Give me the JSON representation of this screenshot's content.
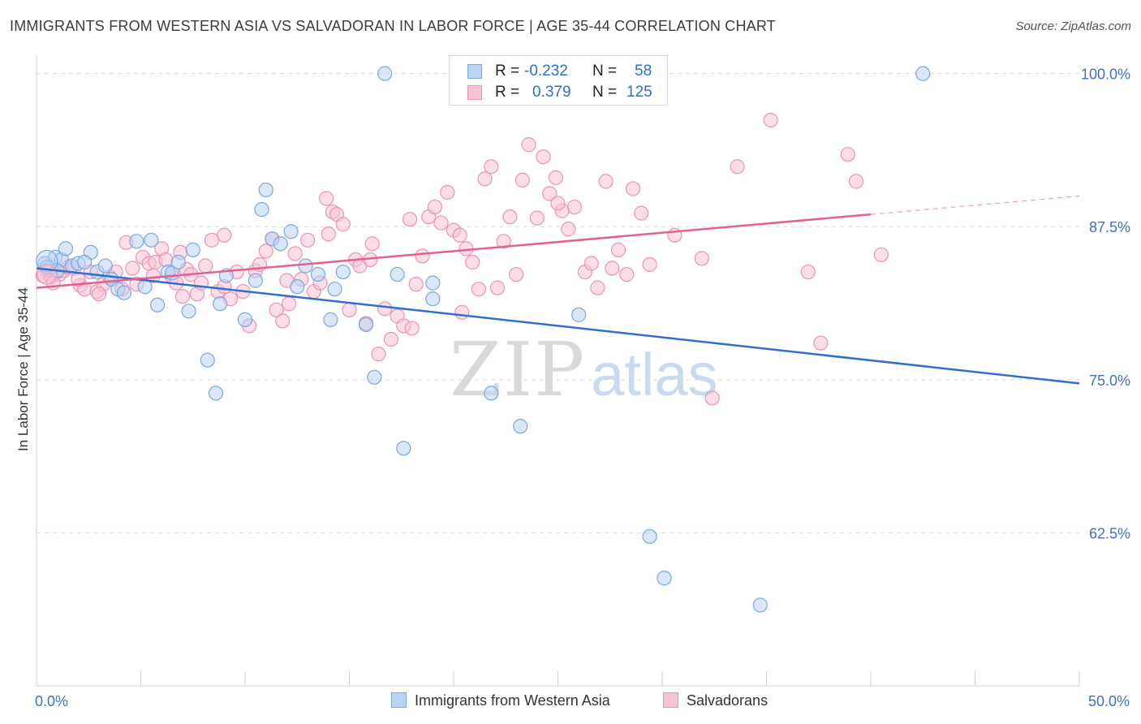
{
  "title": "IMMIGRANTS FROM WESTERN ASIA VS SALVADORAN IN LABOR FORCE | AGE 35-44 CORRELATION CHART",
  "source": "Source: ZipAtlas.com",
  "watermark": {
    "zip": "ZIP",
    "atlas": "atlas"
  },
  "legend_top": [
    {
      "r_label": "R =",
      "r_value": "-0.232",
      "n_label": "N =",
      "n_value": "58"
    },
    {
      "r_label": "R =",
      "r_value": "0.379",
      "n_label": "N =",
      "n_value": "125"
    }
  ],
  "colors": {
    "blue_fill": "#b9d3f3",
    "blue_stroke": "#7aa8e0",
    "blue_line": "#2e6fd0",
    "pink_fill": "#f7c3d5",
    "pink_stroke": "#eb93b3",
    "pink_line": "#e4608f",
    "tick_label": "#3d72c9",
    "grid": "#d9d9d9"
  },
  "chart_data": {
    "type": "scatter",
    "title": "IMMIGRANTS FROM WESTERN ASIA VS SALVADORAN IN LABOR FORCE | AGE 35-44 CORRELATION CHART",
    "xlabel": "",
    "ylabel": "In Labor Force | Age 35-44",
    "xlim": [
      0,
      50
    ],
    "ylim": [
      50,
      101.5
    ],
    "x_tick_labels": [
      {
        "value": 0,
        "label": "0.0%"
      },
      {
        "value": 50,
        "label": "50.0%"
      }
    ],
    "y_tick_labels": [
      {
        "value": 100,
        "label": "100.0%"
      },
      {
        "value": 87.5,
        "label": "87.5%"
      },
      {
        "value": 75,
        "label": "75.0%"
      },
      {
        "value": 62.5,
        "label": "62.5%"
      }
    ],
    "grid": "horizontal dashed",
    "legend": "bottom-center",
    "series": [
      {
        "name": "Immigrants from Western Asia",
        "color": "#b9d3f3",
        "trend": {
          "x0": 0,
          "y0": 84.1,
          "x1": 50,
          "y1": 74.7,
          "solid_until": 50
        },
        "points": [
          [
            0.4,
            84.5
          ],
          [
            0.7,
            84.2
          ],
          [
            0.9,
            85.0
          ],
          [
            1.2,
            84.8
          ],
          [
            1.4,
            85.7
          ],
          [
            1.7,
            84.3
          ],
          [
            2.0,
            84.5
          ],
          [
            2.6,
            85.4
          ],
          [
            2.9,
            83.8
          ],
          [
            3.3,
            84.3
          ],
          [
            3.6,
            83.2
          ],
          [
            3.9,
            82.4
          ],
          [
            4.2,
            82.1
          ],
          [
            4.8,
            86.3
          ],
          [
            5.2,
            82.6
          ],
          [
            5.5,
            86.4
          ],
          [
            5.8,
            81.1
          ],
          [
            6.3,
            83.8
          ],
          [
            6.5,
            83.7
          ],
          [
            6.8,
            84.6
          ],
          [
            7.5,
            85.6
          ],
          [
            7.3,
            80.6
          ],
          [
            8.2,
            76.6
          ],
          [
            8.6,
            73.9
          ],
          [
            8.8,
            81.2
          ],
          [
            9.1,
            83.5
          ],
          [
            10.0,
            79.9
          ],
          [
            10.5,
            83.1
          ],
          [
            10.8,
            88.9
          ],
          [
            11.0,
            90.5
          ],
          [
            11.3,
            86.5
          ],
          [
            11.7,
            86.1
          ],
          [
            12.2,
            87.1
          ],
          [
            12.5,
            82.6
          ],
          [
            12.9,
            84.3
          ],
          [
            13.5,
            83.6
          ],
          [
            14.1,
            79.9
          ],
          [
            14.3,
            82.4
          ],
          [
            14.7,
            83.8
          ],
          [
            15.8,
            79.5
          ],
          [
            16.2,
            75.2
          ],
          [
            16.7,
            100.0
          ],
          [
            17.3,
            83.6
          ],
          [
            17.6,
            69.4
          ],
          [
            19.0,
            82.9
          ],
          [
            19.0,
            81.6
          ],
          [
            20.2,
            100.0
          ],
          [
            21.8,
            73.9
          ],
          [
            23.2,
            71.2
          ],
          [
            25.9,
            100.0
          ],
          [
            26.0,
            80.3
          ],
          [
            29.4,
            62.2
          ],
          [
            30.1,
            58.8
          ],
          [
            34.7,
            56.6
          ],
          [
            42.5,
            100.0
          ],
          [
            0.5,
            84.2
          ],
          [
            2.3,
            84.6
          ],
          [
            1.0,
            83.9
          ]
        ]
      },
      {
        "name": "Salvadorans",
        "color": "#f7c3d5",
        "trend": {
          "x0": 0,
          "y0": 82.5,
          "x1": 50,
          "y1": 90.0,
          "solid_until": 40
        },
        "points": [
          [
            0.3,
            83.5
          ],
          [
            0.5,
            83.9
          ],
          [
            0.7,
            83.4
          ],
          [
            0.9,
            83.7
          ],
          [
            1.1,
            83.6
          ],
          [
            1.3,
            83.9
          ],
          [
            1.5,
            84.2
          ],
          [
            1.8,
            84.1
          ],
          [
            2.1,
            82.7
          ],
          [
            2.3,
            82.4
          ],
          [
            2.6,
            83.8
          ],
          [
            2.9,
            82.2
          ],
          [
            3.2,
            82.8
          ],
          [
            3.5,
            83.4
          ],
          [
            3.8,
            83.8
          ],
          [
            4.1,
            82.4
          ],
          [
            4.3,
            86.2
          ],
          [
            4.6,
            84.1
          ],
          [
            4.8,
            82.8
          ],
          [
            5.1,
            85.0
          ],
          [
            5.4,
            84.5
          ],
          [
            5.7,
            84.6
          ],
          [
            6.0,
            85.7
          ],
          [
            6.2,
            84.8
          ],
          [
            6.5,
            83.4
          ],
          [
            6.7,
            82.9
          ],
          [
            6.9,
            85.4
          ],
          [
            7.2,
            84.0
          ],
          [
            7.4,
            83.6
          ],
          [
            7.7,
            82.0
          ],
          [
            7.9,
            82.9
          ],
          [
            8.1,
            84.3
          ],
          [
            8.4,
            86.4
          ],
          [
            8.7,
            82.2
          ],
          [
            9.0,
            82.6
          ],
          [
            9.3,
            81.6
          ],
          [
            9.6,
            83.8
          ],
          [
            9.9,
            82.2
          ],
          [
            10.2,
            79.4
          ],
          [
            10.5,
            83.9
          ],
          [
            10.7,
            84.4
          ],
          [
            11.0,
            85.5
          ],
          [
            11.3,
            86.5
          ],
          [
            11.5,
            80.7
          ],
          [
            11.8,
            79.8
          ],
          [
            12.1,
            81.2
          ],
          [
            12.4,
            85.3
          ],
          [
            12.7,
            83.2
          ],
          [
            13.0,
            86.4
          ],
          [
            13.3,
            82.2
          ],
          [
            13.6,
            82.9
          ],
          [
            13.9,
            89.8
          ],
          [
            14.2,
            88.7
          ],
          [
            14.4,
            88.5
          ],
          [
            14.7,
            87.7
          ],
          [
            15.0,
            80.7
          ],
          [
            15.3,
            84.8
          ],
          [
            15.5,
            84.3
          ],
          [
            15.8,
            79.6
          ],
          [
            16.1,
            86.1
          ],
          [
            16.4,
            77.1
          ],
          [
            16.7,
            80.8
          ],
          [
            17.0,
            78.3
          ],
          [
            17.3,
            80.2
          ],
          [
            17.6,
            79.4
          ],
          [
            17.9,
            88.1
          ],
          [
            18.2,
            82.8
          ],
          [
            18.5,
            85.1
          ],
          [
            18.8,
            88.3
          ],
          [
            19.1,
            89.1
          ],
          [
            19.4,
            87.8
          ],
          [
            19.7,
            90.3
          ],
          [
            20.0,
            87.2
          ],
          [
            20.3,
            86.8
          ],
          [
            20.6,
            85.7
          ],
          [
            20.9,
            84.6
          ],
          [
            21.2,
            82.4
          ],
          [
            21.5,
            91.4
          ],
          [
            21.8,
            92.4
          ],
          [
            22.1,
            82.5
          ],
          [
            22.4,
            86.3
          ],
          [
            22.7,
            88.3
          ],
          [
            23.0,
            83.6
          ],
          [
            23.3,
            91.3
          ],
          [
            23.6,
            94.2
          ],
          [
            24.0,
            88.2
          ],
          [
            24.3,
            93.2
          ],
          [
            24.6,
            90.2
          ],
          [
            24.9,
            91.5
          ],
          [
            25.2,
            88.8
          ],
          [
            25.5,
            87.3
          ],
          [
            25.8,
            89.1
          ],
          [
            26.3,
            83.8
          ],
          [
            26.6,
            84.5
          ],
          [
            26.9,
            82.5
          ],
          [
            27.3,
            91.2
          ],
          [
            27.6,
            84.1
          ],
          [
            27.9,
            85.6
          ],
          [
            28.3,
            83.6
          ],
          [
            28.6,
            90.6
          ],
          [
            29.0,
            88.6
          ],
          [
            29.4,
            84.4
          ],
          [
            30.6,
            86.8
          ],
          [
            31.9,
            84.9
          ],
          [
            32.4,
            73.5
          ],
          [
            33.6,
            92.4
          ],
          [
            35.2,
            96.2
          ],
          [
            37.0,
            83.8
          ],
          [
            37.6,
            78.0
          ],
          [
            38.9,
            93.4
          ],
          [
            39.3,
            91.2
          ],
          [
            40.5,
            85.2
          ],
          [
            25.0,
            89.4
          ],
          [
            20.4,
            80.5
          ],
          [
            18.0,
            79.2
          ],
          [
            16.0,
            84.8
          ],
          [
            14.0,
            86.9
          ],
          [
            12.0,
            83.1
          ],
          [
            9.0,
            86.8
          ],
          [
            7.0,
            81.8
          ],
          [
            5.6,
            83.5
          ],
          [
            3.0,
            82.0
          ],
          [
            2.0,
            83.2
          ],
          [
            0.6,
            84.0
          ],
          [
            0.8,
            82.9
          ]
        ]
      }
    ]
  }
}
